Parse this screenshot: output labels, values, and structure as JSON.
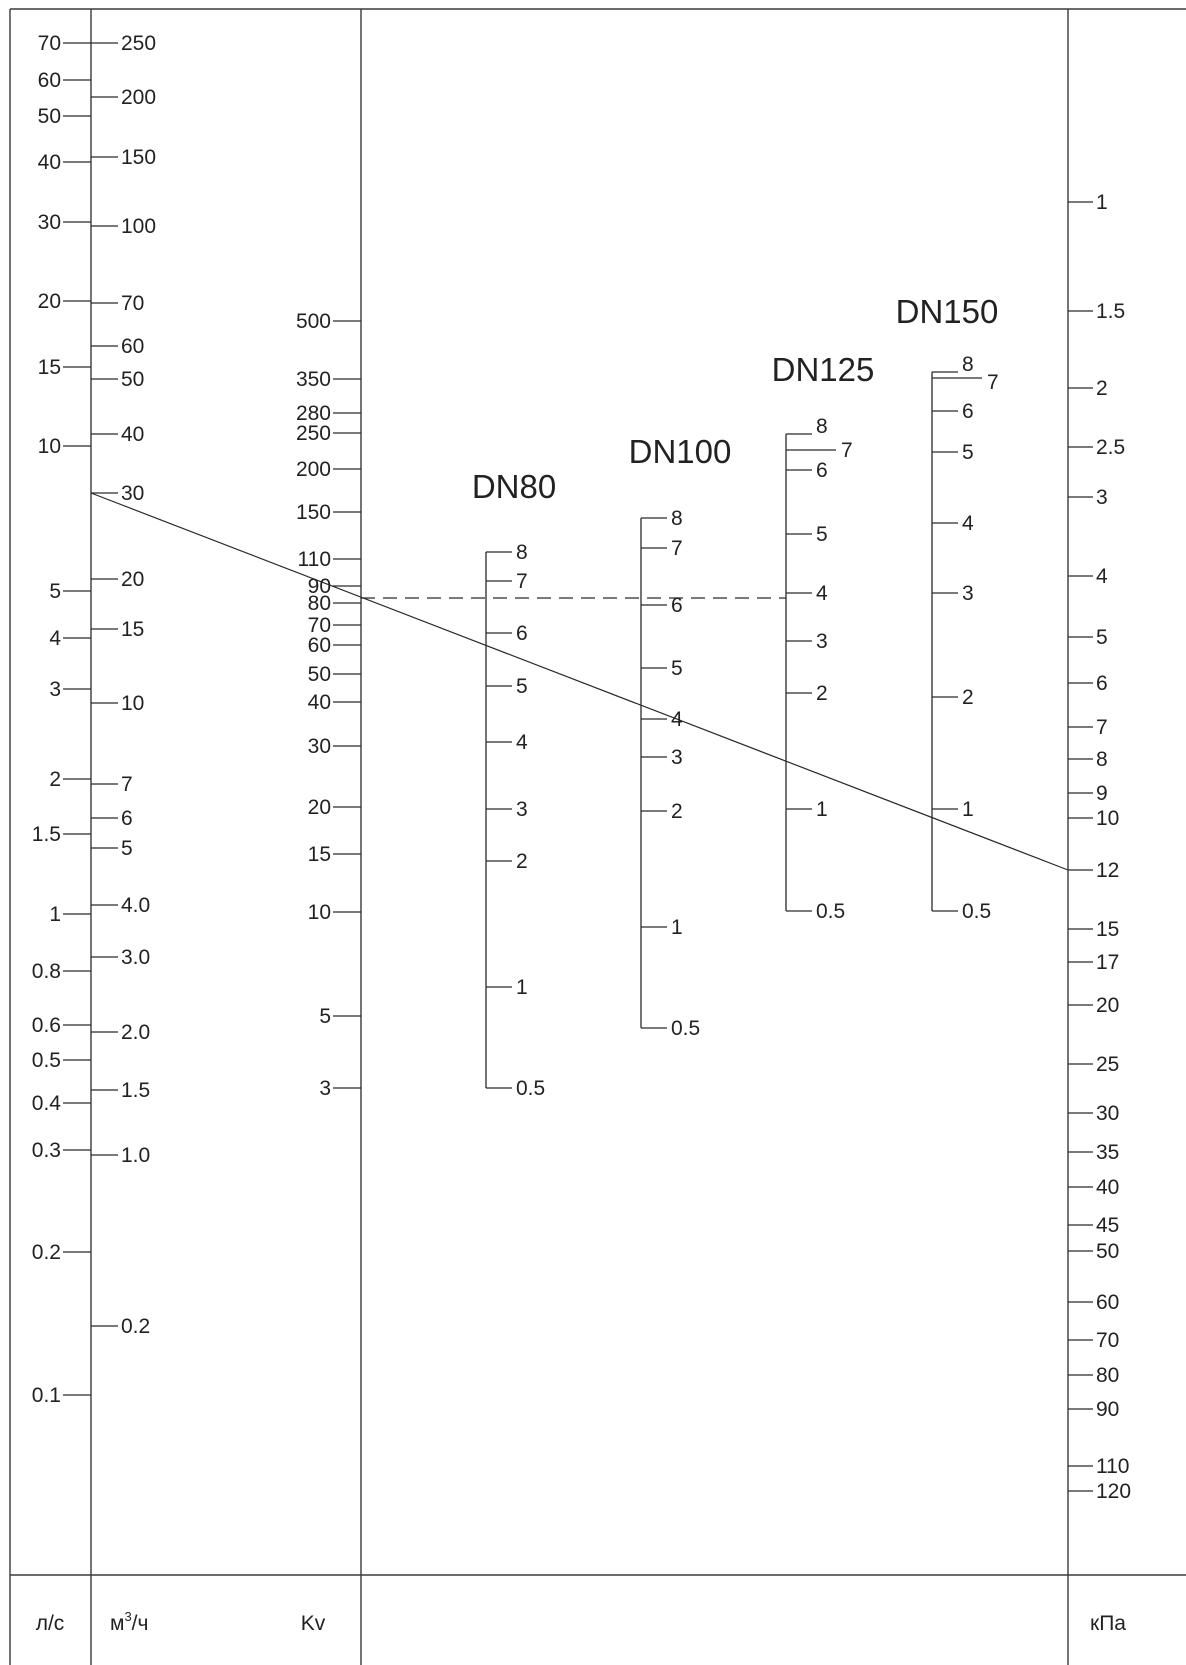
{
  "scales": {
    "ls": {
      "unit": "л/с",
      "ticks": [
        "70",
        "60",
        "50",
        "40",
        "30",
        "20",
        "15",
        "10",
        "5",
        "4",
        "3",
        "2",
        "1.5",
        "1",
        "0.8",
        "0.6",
        "0.5",
        "0.4",
        "0.3",
        "0.2",
        "0.1"
      ]
    },
    "m3h": {
      "unit_base": "м",
      "unit_sup": "3",
      "unit_rest": "/ч",
      "ticks": [
        "250",
        "200",
        "150",
        "100",
        "70",
        "60",
        "50",
        "40",
        "30",
        "20",
        "15",
        "10",
        "7",
        "6",
        "5",
        "4.0",
        "3.0",
        "2.0",
        "1.5",
        "1.0",
        "0.2"
      ]
    },
    "kv": {
      "unit": "Kv",
      "ticks": [
        "500",
        "350",
        "280",
        "250",
        "200",
        "150",
        "110",
        "90",
        "80",
        "70",
        "60",
        "50",
        "40",
        "30",
        "20",
        "15",
        "10",
        "5",
        "3"
      ]
    },
    "kpa": {
      "unit": "кПа",
      "ticks": [
        "1",
        "1.5",
        "2",
        "2.5",
        "3",
        "4",
        "5",
        "6",
        "7",
        "8",
        "9",
        "10",
        "12",
        "15",
        "17",
        "20",
        "25",
        "30",
        "35",
        "40",
        "45",
        "50",
        "60",
        "70",
        "80",
        "90",
        "110",
        "120"
      ]
    },
    "valves": [
      {
        "name": "DN80",
        "ticks": [
          "8",
          "7",
          "6",
          "5",
          "4",
          "3",
          "2",
          "1",
          "0.5"
        ]
      },
      {
        "name": "DN100",
        "ticks": [
          "8",
          "7",
          "6",
          "5",
          "4",
          "3",
          "2",
          "1",
          "0.5"
        ]
      },
      {
        "name": "DN125",
        "ticks": [
          "8",
          "7",
          "6",
          "5",
          "4",
          "3",
          "2",
          "1",
          "0.5"
        ]
      },
      {
        "name": "DN150",
        "ticks": [
          "8",
          "7",
          "6",
          "5",
          "4",
          "3",
          "2",
          "1",
          "0.5"
        ]
      }
    ]
  }
}
